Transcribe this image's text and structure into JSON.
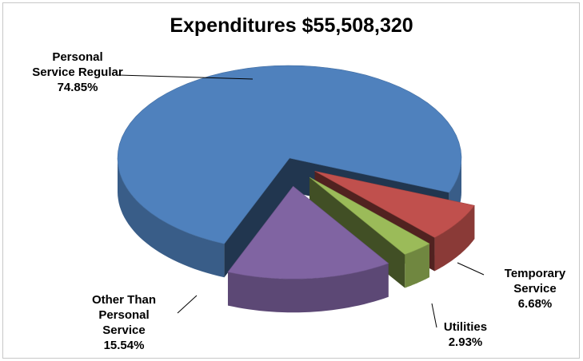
{
  "chart_data": {
    "type": "pie",
    "title": "Expenditures $55,508,320",
    "categories": [
      "Personal Service Regular",
      "Temporary Service",
      "Utilities",
      "Other Than Personal Service"
    ],
    "label_lines": [
      [
        "Personal",
        "Service Regular"
      ],
      [
        "Temporary",
        "Service"
      ],
      [
        "Utilities"
      ],
      [
        "Other Than",
        "Personal",
        "Service"
      ]
    ],
    "values": [
      74.85,
      6.68,
      2.93,
      15.54
    ],
    "value_labels": [
      "74.85%",
      "6.68%",
      "2.93%",
      "15.54%"
    ],
    "unit": "%",
    "style": "3d-exploded",
    "colors": [
      "#4f81bd",
      "#c0504d",
      "#9bbb59",
      "#8064a2"
    ],
    "legend": "none"
  }
}
